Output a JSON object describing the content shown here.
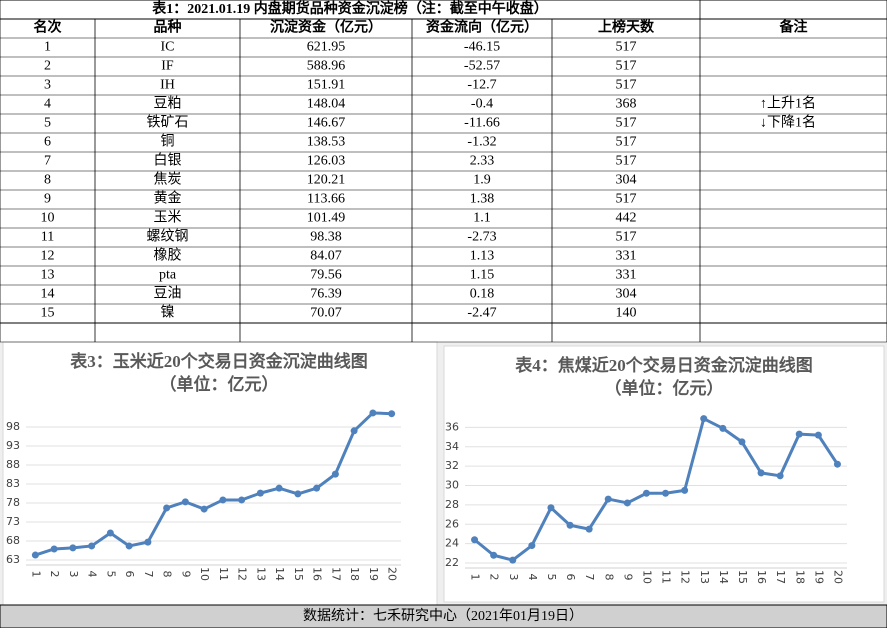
{
  "table": {
    "title": "表1：2021.01.19 内盘期货品种资金沉淀榜（注：截至中午收盘）",
    "header": [
      "名次",
      "品种",
      "沉淀资金（亿元）",
      "资金流向（亿元）",
      "上榜天数",
      "备注"
    ],
    "rows": [
      [
        "1",
        "IC",
        "621.95",
        "-46.15",
        "517"
      ],
      [
        "2",
        "IF",
        "588.96",
        "-52.57",
        "517"
      ],
      [
        "3",
        "IH",
        "151.91",
        "-12.7",
        "517"
      ],
      [
        "4",
        "豆粕",
        "148.04",
        "-0.4",
        "368"
      ],
      [
        "5",
        "铁矿石",
        "146.67",
        "-11.66",
        "517"
      ],
      [
        "6",
        "铜",
        "138.53",
        "-1.32",
        "517"
      ],
      [
        "7",
        "白银",
        "126.03",
        "2.33",
        "517"
      ],
      [
        "8",
        "焦炭",
        "120.21",
        "1.9",
        "304"
      ],
      [
        "9",
        "黄金",
        "113.66",
        "1.38",
        "517"
      ],
      [
        "10",
        "玉米",
        "101.49",
        "1.1",
        "442"
      ],
      [
        "11",
        "螺纹钢",
        "98.38",
        "-2.73",
        "517"
      ],
      [
        "12",
        "橡胶",
        "84.07",
        "1.13",
        "331"
      ],
      [
        "13",
        "pta",
        "79.56",
        "1.15",
        "331"
      ],
      [
        "14",
        "豆油",
        "76.39",
        "0.18",
        "304"
      ],
      [
        "15",
        "镍",
        "70.07",
        "-2.47",
        "140"
      ]
    ],
    "remarks": [
      "↑上升1名",
      "↓下降1名"
    ]
  },
  "chart_data": [
    {
      "type": "line",
      "title": "表3：玉米近20个交易日资金沉淀曲线图",
      "subtitle": "（单位：亿元）",
      "categories": [
        "1",
        "2",
        "3",
        "4",
        "5",
        "6",
        "7",
        "8",
        "9",
        "10",
        "11",
        "12",
        "13",
        "14",
        "15",
        "16",
        "17",
        "18",
        "19",
        "20"
      ],
      "series": [
        {
          "name": "玉米",
          "color": "#4f81bd",
          "values": [
            64.3,
            65.9,
            66.2,
            66.7,
            70.1,
            66.7,
            67.7,
            76.7,
            78.3,
            76.4,
            78.8,
            78.8,
            80.6,
            81.9,
            80.4,
            81.9,
            85.6,
            97.0,
            101.7,
            101.5
          ]
        }
      ],
      "ylim": [
        63,
        103
      ],
      "yticks": [
        63,
        68,
        73,
        78,
        83,
        88,
        93,
        98
      ],
      "grid": true
    },
    {
      "type": "line",
      "title": "表4：焦煤近20个交易日资金沉淀曲线图",
      "subtitle": "（单位：亿元）",
      "categories": [
        "1",
        "2",
        "3",
        "4",
        "5",
        "6",
        "7",
        "8",
        "9",
        "10",
        "11",
        "12",
        "13",
        "14",
        "15",
        "16",
        "17",
        "18",
        "19",
        "20"
      ],
      "series": [
        {
          "name": "焦煤",
          "color": "#4f81bd",
          "values": [
            24.4,
            22.8,
            22.3,
            23.8,
            27.7,
            25.9,
            25.5,
            28.6,
            28.2,
            29.2,
            29.2,
            29.5,
            36.9,
            35.9,
            34.5,
            31.3,
            31.0,
            35.3,
            35.2,
            32.2
          ]
        }
      ],
      "ylim": [
        22,
        38
      ],
      "yticks": [
        22,
        24,
        26,
        28,
        30,
        32,
        34,
        36
      ],
      "grid": true
    }
  ],
  "footer": "数据统计：七禾研究中心（2021年01月19日）"
}
